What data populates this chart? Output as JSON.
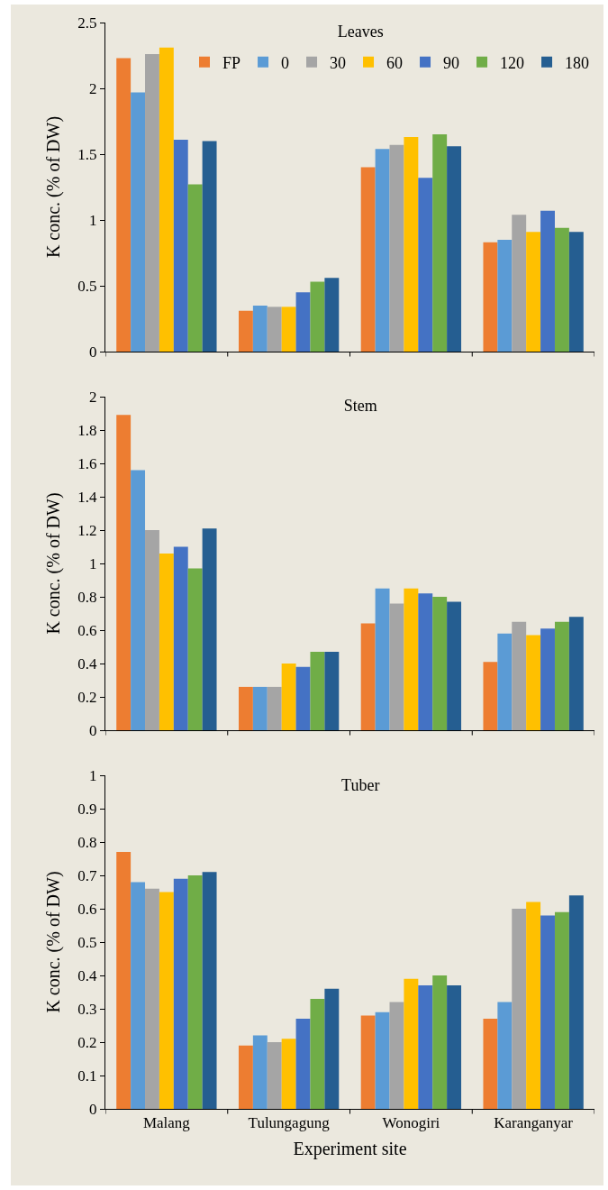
{
  "chart_data": [
    {
      "type": "bar",
      "title": "Leaves",
      "ylabel": "K conc. (% of DW)",
      "categories": [
        null,
        null,
        null,
        null
      ],
      "ylim": [
        0,
        2.5
      ],
      "yticks": [
        0,
        0.5,
        1,
        1.5,
        2,
        2.5
      ],
      "grid": false,
      "legend": "top right",
      "tick_labels": "y",
      "series": [
        {
          "name": "FP",
          "color": "#ed7d31",
          "values": [
            2.23,
            0.31,
            1.4,
            0.83
          ]
        },
        {
          "name": "0",
          "color": "#5b9bd5",
          "values": [
            1.97,
            0.35,
            1.54,
            0.85
          ]
        },
        {
          "name": "30",
          "color": "#a5a5a5",
          "values": [
            2.26,
            0.34,
            1.57,
            1.04
          ]
        },
        {
          "name": "60",
          "color": "#ffc000",
          "values": [
            2.31,
            0.34,
            1.63,
            0.91
          ]
        },
        {
          "name": "90",
          "color": "#4472c4",
          "values": [
            1.61,
            0.45,
            1.32,
            1.07
          ]
        },
        {
          "name": "120",
          "color": "#70ad47",
          "values": [
            1.27,
            0.53,
            1.65,
            0.94
          ]
        },
        {
          "name": "180",
          "color": "#255e91",
          "values": [
            1.6,
            0.56,
            1.56,
            0.91
          ]
        }
      ]
    },
    {
      "type": "bar",
      "title": "Stem",
      "ylabel": "K conc. (% of DW)",
      "categories": [
        null,
        null,
        null,
        null
      ],
      "ylim": [
        0,
        2
      ],
      "yticks": [
        0,
        0.2,
        0.4,
        0.6,
        0.8,
        1,
        1.2,
        1.4,
        1.6,
        1.8,
        2
      ],
      "grid": false,
      "legend": false,
      "tick_labels": "y",
      "series": [
        {
          "color": "#ed7d31",
          "values": [
            1.89,
            0.26,
            0.64,
            0.41
          ]
        },
        {
          "color": "#5b9bd5",
          "values": [
            1.56,
            0.26,
            0.85,
            0.58
          ]
        },
        {
          "color": "#a5a5a5",
          "values": [
            1.2,
            0.26,
            0.76,
            0.65
          ]
        },
        {
          "color": "#ffc000",
          "values": [
            1.06,
            0.4,
            0.85,
            0.57
          ]
        },
        {
          "color": "#4472c4",
          "values": [
            1.1,
            0.38,
            0.82,
            0.61
          ]
        },
        {
          "color": "#70ad47",
          "values": [
            0.97,
            0.47,
            0.8,
            0.65
          ]
        },
        {
          "color": "#255e91",
          "values": [
            1.21,
            0.47,
            0.77,
            0.68
          ]
        }
      ]
    },
    {
      "type": "bar",
      "title": "Tuber",
      "xlabel": "Experiment site",
      "ylabel": "K conc. (% of DW)",
      "categories": [
        "Malang",
        "Tulungagung",
        "Wonogiri",
        "Karanganyar"
      ],
      "ylim": [
        0,
        1
      ],
      "yticks": [
        0,
        0.1,
        0.2,
        0.3,
        0.4,
        0.5,
        0.6,
        0.7,
        0.8,
        0.9,
        1
      ],
      "grid": false,
      "legend": false,
      "series": [
        {
          "color": "#ed7d31",
          "values": [
            0.77,
            0.19,
            0.28,
            0.27
          ]
        },
        {
          "color": "#5b9bd5",
          "values": [
            0.68,
            0.22,
            0.29,
            0.32
          ]
        },
        {
          "color": "#a5a5a5",
          "values": [
            0.66,
            0.2,
            0.32,
            0.6
          ]
        },
        {
          "color": "#ffc000",
          "values": [
            0.65,
            0.21,
            0.39,
            0.62
          ]
        },
        {
          "color": "#4472c4",
          "values": [
            0.69,
            0.27,
            0.37,
            0.58
          ]
        },
        {
          "color": "#70ad47",
          "values": [
            0.7,
            0.33,
            0.4,
            0.59
          ]
        },
        {
          "color": "#255e91",
          "values": [
            0.71,
            0.36,
            0.37,
            0.64
          ]
        }
      ]
    }
  ]
}
